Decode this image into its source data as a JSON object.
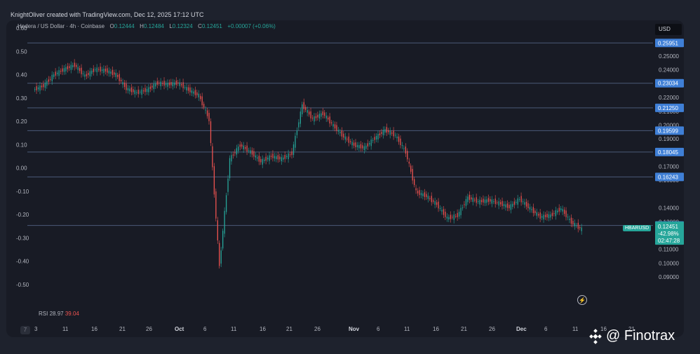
{
  "header": {
    "credit": "KnightOliver created with TradingView.com, Dec 12, 2025 17:12 UTC"
  },
  "legend": {
    "symbol": "Hedera / US Dollar · 4h · Coinbase",
    "o_key": "O",
    "o_val": "0.12444",
    "h_key": "H",
    "h_val": "0.12484",
    "l_key": "L",
    "l_val": "0.12324",
    "c_key": "C",
    "c_val": "0.12451",
    "change": "+0.00007 (+0.06%)"
  },
  "currency_button": "USD",
  "rsi": {
    "label": "RSI",
    "value1": "28.97",
    "value2": "39.04"
  },
  "pair_tag": "HBARUSD",
  "price_tag": {
    "price": "0.12451",
    "change": "-42.98%",
    "time": "02:47:28"
  },
  "watermark": {
    "text": "@ Finotrax"
  },
  "tv_logo": "7",
  "colors": {
    "up": "#26a69a",
    "down": "#ef5350",
    "level_line": "#4a5a78",
    "level_label_bg": "#3f7fd6",
    "price_bg": "#26a69a"
  },
  "chart_data": {
    "type": "line",
    "title": "Hedera / US Dollar · 4h · Coinbase",
    "left_axis": {
      "ticks": [
        "0.60",
        "0.50",
        "0.40",
        "0.30",
        "0.20",
        "0.10",
        "0.00",
        "-0.10",
        "-0.20",
        "-0.30",
        "-0.40",
        "-0.50"
      ],
      "values": [
        0.6,
        0.5,
        0.4,
        0.3,
        0.2,
        0.1,
        0.0,
        -0.1,
        -0.2,
        -0.3,
        -0.4,
        -0.5
      ]
    },
    "right_axis": {
      "ticks": [
        "0.25000",
        "0.24000",
        "0.23000",
        "0.22000",
        "0.21000",
        "0.20000",
        "0.19000",
        "0.17000",
        "0.16000",
        "0.14000",
        "0.13000",
        "0.11000",
        "0.10000",
        "0.09000"
      ],
      "values": [
        0.25,
        0.24,
        0.23,
        0.22,
        0.21,
        0.2,
        0.19,
        0.17,
        0.16,
        0.14,
        0.13,
        0.11,
        0.1,
        0.09
      ]
    },
    "x_ticks": [
      "7",
      "3",
      "11",
      "16",
      "21",
      "26",
      "Oct",
      "6",
      "11",
      "16",
      "21",
      "26",
      "Nov",
      "6",
      "11",
      "16",
      "21",
      "26",
      "Dec",
      "6",
      "11",
      "16",
      "21"
    ],
    "x_bold": [
      "Oct",
      "Nov",
      "Dec"
    ],
    "levels": [
      "0.25951",
      "0.23034",
      "0.21250",
      "0.19599",
      "0.18045",
      "0.16243",
      "0.12728"
    ],
    "level_values": [
      0.25951,
      0.23034,
      0.2125,
      0.19599,
      0.18045,
      0.16243,
      0.12728
    ],
    "series": [
      {
        "x": [
          "Sep 3",
          "Sep 6",
          "Sep 9",
          "Sep 12",
          "Sep 13",
          "Sep 16",
          "Sep 18",
          "Sep 20",
          "Sep 21",
          "Sep 22",
          "Sep 25",
          "Sep 28",
          "Oct 1",
          "Oct 3",
          "Oct 5",
          "Oct 7",
          "Oct 9",
          "Oct 10",
          "Oct 10b",
          "Oct 11",
          "Oct 13",
          "Oct 15",
          "Oct 17",
          "Oct 19",
          "Oct 21",
          "Oct 24",
          "Oct 26",
          "Oct 27",
          "Oct 29",
          "Oct 30",
          "Nov 1",
          "Nov 3",
          "Nov 5",
          "Nov 7",
          "Nov 9",
          "Nov 10",
          "Nov 12",
          "Nov 14",
          "Nov 16",
          "Nov 18",
          "Nov 20",
          "Nov 21",
          "Nov 22",
          "Nov 24",
          "Nov 26",
          "Nov 28",
          "Dec 1",
          "Dec 2",
          "Dec 4",
          "Dec 6",
          "Dec 8",
          "Dec 9",
          "Dec 11",
          "Dec 12"
        ],
        "values": [
          0.2255,
          0.2285,
          0.2365,
          0.2405,
          0.2435,
          0.2355,
          0.2405,
          0.2395,
          0.2365,
          0.2265,
          0.2235,
          0.2255,
          0.2305,
          0.2295,
          0.2305,
          0.2255,
          0.2215,
          0.204,
          0.0975,
          0.1755,
          0.1855,
          0.1805,
          0.1735,
          0.1775,
          0.1755,
          0.1795,
          0.2145,
          0.2045,
          0.2085,
          0.1995,
          0.1915,
          0.1855,
          0.1835,
          0.1905,
          0.1965,
          0.1925,
          0.1805,
          0.1515,
          0.1485,
          0.1425,
          0.1325,
          0.1345,
          0.1475,
          0.1445,
          0.1455,
          0.1435,
          0.1405,
          0.1465,
          0.1395,
          0.1335,
          0.1345,
          0.1395,
          0.1295,
          0.1245
        ]
      }
    ]
  }
}
